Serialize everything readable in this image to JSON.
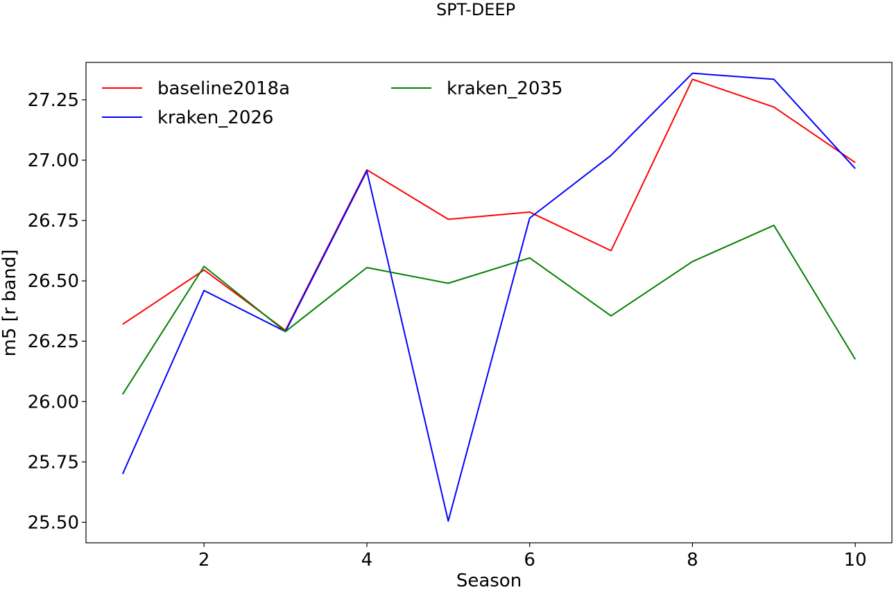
{
  "chart_data": {
    "type": "line",
    "title": "SPT-DEEP",
    "xlabel": "Season",
    "ylabel": "m5 [r band]",
    "xlim": [
      0.55,
      10.45
    ],
    "ylim": [
      25.415,
      27.405
    ],
    "x_ticks": [
      2,
      4,
      6,
      8,
      10
    ],
    "x_tick_labels": [
      "2",
      "4",
      "6",
      "8",
      "10"
    ],
    "y_ticks": [
      25.5,
      25.75,
      26.0,
      26.25,
      26.5,
      26.75,
      27.0,
      27.25
    ],
    "y_tick_labels": [
      "25.50",
      "25.75",
      "26.00",
      "26.25",
      "26.50",
      "26.75",
      "27.00",
      "27.25"
    ],
    "grid": false,
    "legend_position": "top-left",
    "x": [
      1,
      2,
      3,
      4,
      5,
      6,
      7,
      8,
      9,
      10
    ],
    "series": [
      {
        "name": "baseline2018a",
        "color": "#ff0000",
        "values": [
          26.32,
          26.545,
          26.295,
          26.96,
          26.755,
          26.785,
          26.625,
          27.335,
          27.22,
          26.99
        ]
      },
      {
        "name": "kraken_2026",
        "color": "#0000ff",
        "values": [
          25.7,
          26.46,
          26.29,
          26.955,
          25.505,
          26.76,
          27.02,
          27.36,
          27.335,
          26.965
        ]
      },
      {
        "name": "kraken_2035",
        "color": "#008000",
        "values": [
          26.03,
          26.56,
          26.29,
          26.555,
          26.49,
          26.595,
          26.355,
          26.58,
          26.73,
          26.175
        ]
      }
    ]
  }
}
